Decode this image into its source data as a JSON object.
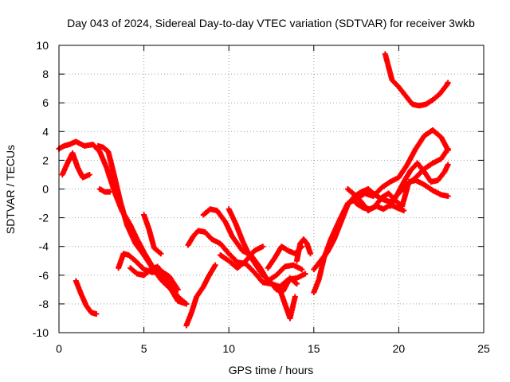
{
  "chart_data": {
    "type": "scatter",
    "title": "Day 043 of 2024, Sidereal Day-to-day VTEC variation (SDTVAR) for receiver 3wkb",
    "xlabel": "GPS time / hours",
    "ylabel": "SDTVAR / TECUs",
    "xlim": [
      0,
      25
    ],
    "ylim": [
      -10,
      10
    ],
    "xticks": [
      0,
      5,
      10,
      15,
      20,
      25
    ],
    "yticks": [
      -10,
      -8,
      -6,
      -4,
      -2,
      0,
      2,
      4,
      6,
      8,
      10
    ],
    "grid": true,
    "marker": "plus",
    "series_color": "#ff0000",
    "series": [
      {
        "x": [
          0.0,
          0.3,
          0.6,
          1.0,
          1.5,
          2.0,
          2.4,
          2.8,
          3.3,
          3.7,
          4.2,
          4.6,
          5.0,
          5.6,
          6.0,
          6.6,
          7.0,
          7.5
        ],
        "y": [
          2.8,
          3.0,
          3.1,
          3.3,
          3.0,
          3.1,
          2.6,
          1.5,
          -0.3,
          -1.5,
          -2.5,
          -3.5,
          -4.4,
          -5.6,
          -6.3,
          -7.0,
          -7.8,
          -8.0
        ]
      },
      {
        "x": [
          0.2,
          0.5,
          0.8,
          1.1,
          1.4,
          1.8
        ],
        "y": [
          1.0,
          1.8,
          2.5,
          1.5,
          0.8,
          1.0
        ]
      },
      {
        "x": [
          1.0,
          1.3,
          1.6,
          1.9,
          2.2
        ],
        "y": [
          -6.4,
          -7.3,
          -8.1,
          -8.6,
          -8.7
        ]
      },
      {
        "x": [
          2.3,
          2.6,
          2.9,
          3.2,
          3.6,
          4.0,
          4.5,
          5.0,
          5.5,
          6.0,
          6.5,
          7.0,
          7.5
        ],
        "y": [
          3.0,
          2.9,
          2.6,
          1.2,
          -0.8,
          -2.5,
          -3.8,
          -4.6,
          -5.5,
          -6.0,
          -6.6,
          -7.5,
          -8.0
        ]
      },
      {
        "x": [
          2.4,
          2.7,
          3.0
        ],
        "y": [
          0.0,
          -0.2,
          -0.2
        ]
      },
      {
        "x": [
          3.5,
          3.8,
          4.1,
          4.5,
          5.0,
          5.5,
          6.0,
          6.5,
          7.0
        ],
        "y": [
          -5.5,
          -4.5,
          -4.6,
          -5.0,
          -5.6,
          -5.8,
          -5.7,
          -6.1,
          -7.0
        ]
      },
      {
        "x": [
          4.2,
          4.6,
          5.0,
          5.4,
          5.8,
          6.1,
          6.4
        ],
        "y": [
          -5.5,
          -5.9,
          -6.0,
          -5.6,
          -5.4,
          -5.9,
          -6.2
        ]
      },
      {
        "x": [
          5.0,
          5.3,
          5.6,
          6.0
        ],
        "y": [
          -1.8,
          -2.8,
          -4.1,
          -4.5
        ]
      },
      {
        "x": [
          7.5,
          7.8,
          8.1,
          8.5,
          8.8,
          9.2
        ],
        "y": [
          -9.5,
          -8.6,
          -7.5,
          -6.8,
          -6.1,
          -5.3
        ]
      },
      {
        "x": [
          7.6,
          7.9,
          8.2,
          8.6,
          9.0,
          9.5,
          10.0,
          10.5,
          11.0,
          11.5,
          12.0,
          12.5,
          13.0,
          13.5,
          14.0,
          14.5
        ],
        "y": [
          -3.9,
          -3.3,
          -2.9,
          -3.0,
          -3.5,
          -3.8,
          -4.5,
          -5.1,
          -5.2,
          -5.8,
          -6.5,
          -6.6,
          -6.8,
          -6.3,
          -6.2,
          -5.9
        ]
      },
      {
        "x": [
          8.5,
          8.9,
          9.3,
          9.8,
          10.2,
          10.8,
          11.3,
          11.8,
          12.3,
          12.8,
          13.3,
          13.8,
          14.3
        ],
        "y": [
          -1.8,
          -1.4,
          -1.5,
          -2.3,
          -3.3,
          -4.3,
          -4.6,
          -5.4,
          -6.4,
          -6.0,
          -5.4,
          -5.3,
          -5.6
        ]
      },
      {
        "x": [
          10.0,
          10.4,
          10.8,
          11.2,
          11.6,
          12.0,
          12.4,
          12.8,
          13.2,
          13.6,
          14.0
        ],
        "y": [
          -1.4,
          -2.4,
          -3.6,
          -4.6,
          -5.3,
          -6.0,
          -6.4,
          -7.0,
          -7.1,
          -6.2,
          -6.6
        ]
      },
      {
        "x": [
          9.5,
          10.0,
          10.5,
          11.0,
          11.5,
          12.0
        ],
        "y": [
          -4.6,
          -5.0,
          -5.5,
          -5.0,
          -4.3,
          -4.0
        ]
      },
      {
        "x": [
          12.3,
          12.7,
          13.1,
          13.5,
          13.9,
          14.3
        ],
        "y": [
          -5.5,
          -4.8,
          -4.0,
          -4.3,
          -4.5,
          -4.0
        ]
      },
      {
        "x": [
          13.0,
          13.3,
          13.6,
          13.9
        ],
        "y": [
          -7.0,
          -8.0,
          -9.0,
          -7.5
        ]
      },
      {
        "x": [
          14.0,
          14.2,
          14.4,
          14.6,
          14.8
        ],
        "y": [
          -5.0,
          -3.8,
          -3.5,
          -3.8,
          -4.5
        ]
      },
      {
        "x": [
          15.0,
          15.3,
          15.6,
          16.0,
          16.5,
          17.0,
          17.5,
          18.0,
          18.5,
          19.0,
          19.5,
          20.0,
          20.5,
          21.0,
          21.5,
          22.0,
          22.5,
          22.9
        ],
        "y": [
          -7.2,
          -6.3,
          -4.8,
          -3.5,
          -2.2,
          -1.0,
          -0.7,
          -0.3,
          -0.5,
          0.1,
          0.5,
          0.8,
          1.7,
          2.8,
          3.7,
          4.1,
          3.6,
          2.7
        ]
      },
      {
        "x": [
          15.0,
          15.4,
          15.8,
          16.2,
          16.6,
          17.0,
          17.4,
          17.8,
          18.2,
          18.6,
          19.0,
          19.5,
          20.0,
          20.5,
          21.0,
          21.5,
          22.0,
          22.5,
          22.9
        ],
        "y": [
          -5.6,
          -5.0,
          -4.4,
          -3.5,
          -2.3,
          -1.1,
          -0.5,
          -0.2,
          0.0,
          -0.4,
          -0.7,
          -0.9,
          -0.3,
          0.3,
          0.8,
          1.4,
          1.8,
          2.1,
          2.8
        ]
      },
      {
        "x": [
          17.0,
          17.4,
          17.8,
          18.2,
          18.6,
          19.0,
          19.4,
          19.8,
          20.2,
          20.6,
          21.0,
          21.5,
          22.0,
          22.5,
          22.9
        ],
        "y": [
          0.0,
          -0.4,
          -0.9,
          -1.5,
          -1.2,
          -0.6,
          -0.3,
          -0.8,
          -1.2,
          0.5,
          0.6,
          0.3,
          -0.1,
          -0.4,
          -0.5
        ]
      },
      {
        "x": [
          17.5,
          17.9,
          18.3,
          18.7,
          19.1,
          19.5,
          19.9,
          20.3
        ],
        "y": [
          -1.0,
          -1.3,
          -1.4,
          -1.2,
          -1.4,
          -1.1,
          -1.3,
          -1.5
        ]
      },
      {
        "x": [
          19.5,
          19.9,
          20.3,
          20.7,
          21.1,
          21.5,
          21.9,
          22.3,
          22.7,
          22.9
        ],
        "y": [
          -1.2,
          -0.4,
          0.5,
          1.3,
          1.8,
          1.2,
          0.5,
          0.6,
          1.2,
          1.7
        ]
      },
      {
        "x": [
          19.2,
          19.6,
          20.0,
          20.4,
          20.8,
          21.2,
          21.6,
          22.0,
          22.4,
          22.8,
          22.9
        ],
        "y": [
          9.4,
          7.6,
          7.1,
          6.5,
          5.9,
          5.8,
          5.9,
          6.2,
          6.6,
          7.2,
          7.4
        ]
      }
    ]
  }
}
